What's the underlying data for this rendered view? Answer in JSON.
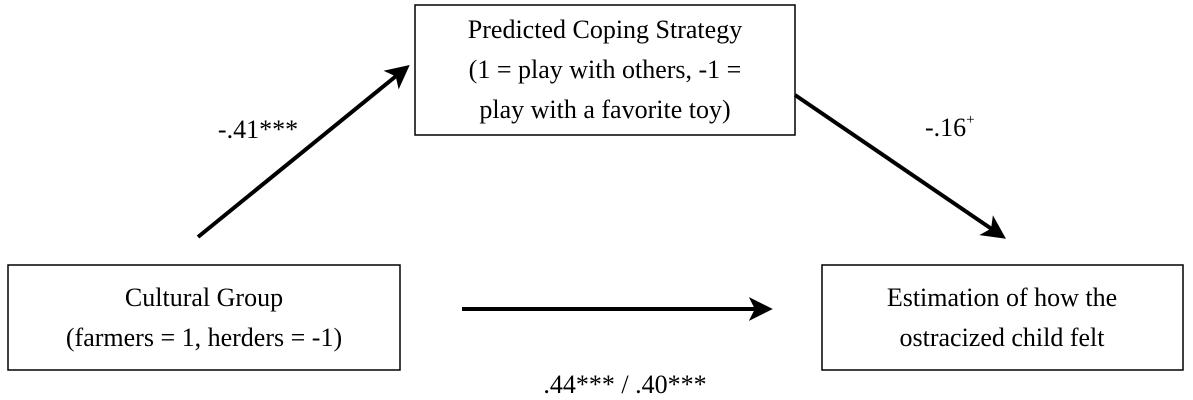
{
  "nodes": [
    {
      "lines": [
        "Predicted Coping Strategy",
        "(1 = play with others, -1 =",
        "play with a favorite toy)"
      ]
    },
    {
      "lines": [
        "Cultural Group",
        "(farmers = 1, herders = -1)"
      ]
    },
    {
      "lines": [
        "Estimation of how the",
        "ostracized child felt"
      ]
    }
  ],
  "edges": [
    {
      "label": "-.41***"
    },
    {
      "label": "-.16",
      "superscript": "+"
    },
    {
      "label": ".44*** / .40***"
    }
  ]
}
